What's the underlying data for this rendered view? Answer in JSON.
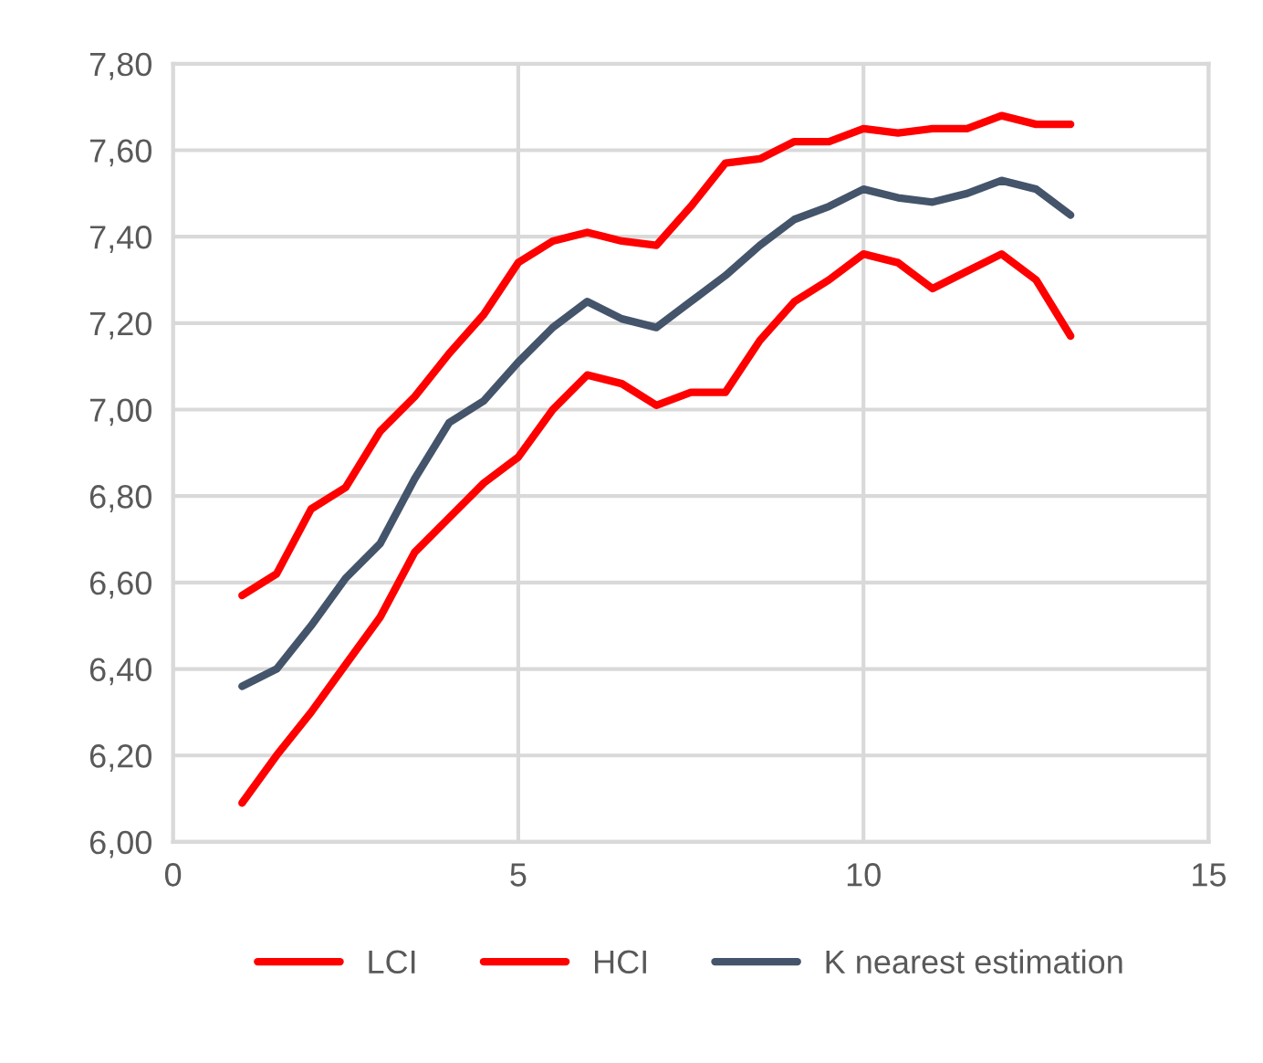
{
  "chart_data": {
    "type": "line",
    "x": [
      1,
      1.5,
      2,
      2.5,
      3,
      3.5,
      4,
      4.5,
      5,
      5.5,
      6,
      6.5,
      7,
      7.5,
      8,
      8.5,
      9,
      9.5,
      10,
      10.5,
      11,
      11.5,
      12,
      12.5,
      13
    ],
    "series": [
      {
        "name": "LCI",
        "color": "#ff0000",
        "values": [
          6.09,
          6.2,
          6.3,
          6.41,
          6.52,
          6.67,
          6.75,
          6.83,
          6.89,
          7.0,
          7.08,
          7.06,
          7.01,
          7.04,
          7.04,
          7.16,
          7.25,
          7.3,
          7.36,
          7.34,
          7.28,
          7.32,
          7.36,
          7.3,
          7.17
        ]
      },
      {
        "name": "HCI",
        "color": "#ff0000",
        "values": [
          6.57,
          6.62,
          6.77,
          6.82,
          6.95,
          7.03,
          7.13,
          7.22,
          7.34,
          7.39,
          7.41,
          7.39,
          7.38,
          7.47,
          7.57,
          7.58,
          7.62,
          7.62,
          7.65,
          7.64,
          7.65,
          7.65,
          7.68,
          7.66,
          7.66
        ]
      },
      {
        "name": "K nearest estimation",
        "color": "#44546a",
        "values": [
          6.36,
          6.4,
          6.5,
          6.61,
          6.69,
          6.84,
          6.97,
          7.02,
          7.11,
          7.19,
          7.25,
          7.21,
          7.19,
          7.25,
          7.31,
          7.38,
          7.44,
          7.47,
          7.51,
          7.49,
          7.48,
          7.5,
          7.53,
          7.51,
          7.45
        ]
      }
    ],
    "xlim": [
      0,
      15
    ],
    "xticks": [
      0,
      5,
      10,
      15
    ],
    "ylim": [
      6.0,
      7.8
    ],
    "yticks": [
      {
        "value": 6.0,
        "label": "6,00"
      },
      {
        "value": 6.2,
        "label": "6,20"
      },
      {
        "value": 6.4,
        "label": "6,40"
      },
      {
        "value": 6.6,
        "label": "6,60"
      },
      {
        "value": 6.8,
        "label": "6,80"
      },
      {
        "value": 7.0,
        "label": "7,00"
      },
      {
        "value": 7.2,
        "label": "7,20"
      },
      {
        "value": 7.4,
        "label": "7,40"
      },
      {
        "value": 7.6,
        "label": "7,60"
      },
      {
        "value": 7.8,
        "label": "7,80"
      }
    ],
    "grid": true,
    "legend": "bottom",
    "marker": "none",
    "line_style": "solid"
  }
}
